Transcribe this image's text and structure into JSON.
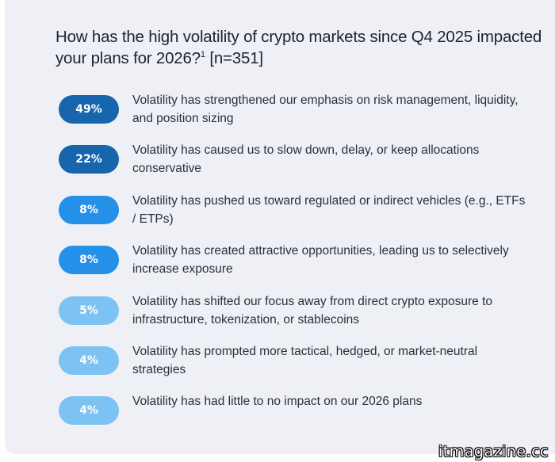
{
  "question": {
    "text": "How has the high volatility of crypto markets since Q4 2025 impacted your plans for 2026?",
    "footnote": "1",
    "sample": "[n=351]"
  },
  "colors": {
    "dark_blue": "#1766ad",
    "mid_blue": "#2490e8",
    "light_blue": "#7cc2f2",
    "text": "#2a2f3d",
    "background": "#eef0f5"
  },
  "chart_data": {
    "type": "bar",
    "title": "How has the high volatility of crypto markets since Q4 2025 impacted your plans for 2026?1 [n=351]",
    "unit": "%",
    "categories": [
      "Volatility has strengthened our emphasis on risk management, liquidity, and position sizing",
      "Volatility has caused us to slow down, delay, or keep allocations conservative",
      "Volatility has pushed us toward regulated or indirect vehicles (e.g., ETFs / ETPs)",
      "Volatility has created attractive opportunities, leading us to selectively increase exposure",
      "Volatility has shifted our focus away from direct crypto exposure to infrastructure, tokenization, or stablecoins",
      "Volatility has prompted more tactical, hedged, or market-neutral strategies",
      "Volatility has had little to no impact on our 2026 plans"
    ],
    "values": [
      49,
      22,
      8,
      8,
      5,
      4,
      4
    ],
    "labels": [
      "49%",
      "22%",
      "8%",
      "8%",
      "5%",
      "4%",
      "4%"
    ],
    "colors": [
      "#1766ad",
      "#1766ad",
      "#2490e8",
      "#2490e8",
      "#7cc2f2",
      "#7cc2f2",
      "#7cc2f2"
    ]
  },
  "watermark": "itmagazine.cc"
}
